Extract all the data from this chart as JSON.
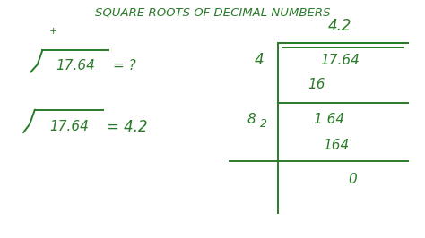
{
  "bg_color": "#ffffff",
  "title": "SQUARE ROOTS OF DECIMAL NUMBERS",
  "title_color": "#2a7a2a",
  "title_fontsize": 9.5,
  "math_color": "#2a7a2a",
  "line_color": "#2a7a2a",
  "figsize": [
    4.74,
    2.66
  ],
  "dpi": 100,
  "xlim": [
    0,
    10
  ],
  "ylim": [
    0,
    5.6
  ]
}
